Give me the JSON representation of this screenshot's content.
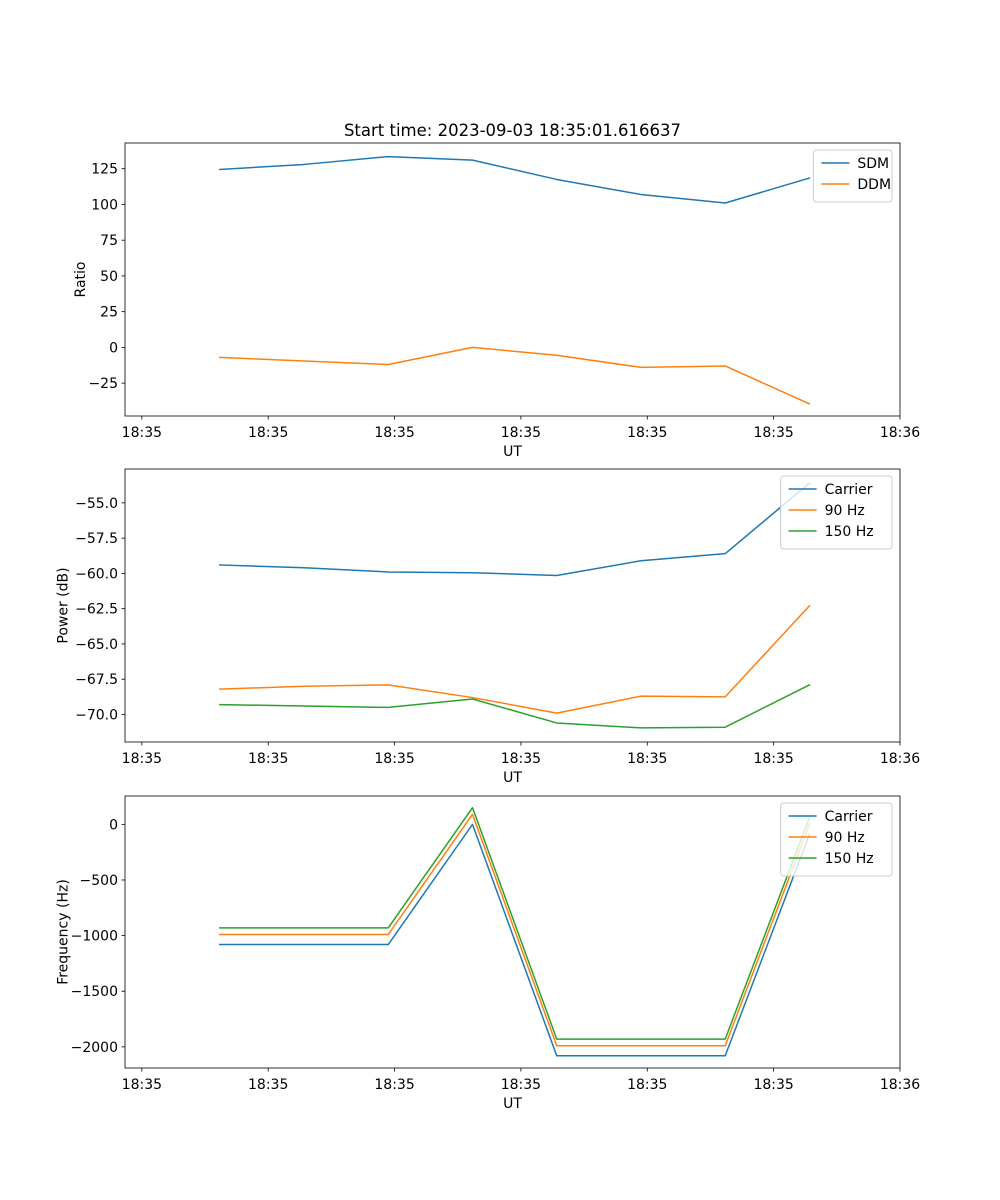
{
  "chart_data": [
    {
      "type": "line",
      "title": "Start time: 2023-09-03 18:35:01.616637",
      "xlabel": "UT",
      "ylabel": "Ratio",
      "xlim": [
        -1,
        17.4
      ],
      "x_tick_positions": [
        -0.6,
        2.4,
        5.4,
        8.4,
        11.4,
        14.4,
        17.4
      ],
      "x_tick_labels": [
        "18:35",
        "18:35",
        "18:35",
        "18:35",
        "18:35",
        "18:35",
        "18:36"
      ],
      "ylim": [
        -48,
        143
      ],
      "y_ticks": [
        -25,
        0,
        25,
        50,
        75,
        100,
        125
      ],
      "y_tick_labels": [
        "−25",
        "0",
        "25",
        "50",
        "75",
        "100",
        "125"
      ],
      "x": [
        1.25,
        3.25,
        5.25,
        7.25,
        9.25,
        11.25,
        13.25,
        15.25
      ],
      "series": [
        {
          "name": "SDM",
          "color": "#1f77b4",
          "values": [
            124.5,
            128,
            133.5,
            131,
            117.5,
            107,
            101,
            118.5
          ]
        },
        {
          "name": "DDM",
          "color": "#ff7f0e",
          "values": [
            -7,
            -9.5,
            -12,
            0,
            -5.5,
            -14,
            -13,
            -39.5
          ]
        }
      ],
      "legend": "top-right"
    },
    {
      "type": "line",
      "title": "",
      "xlabel": "UT",
      "ylabel": "Power (dB)",
      "xlim": [
        -1,
        17.4
      ],
      "x_tick_positions": [
        -0.6,
        2.4,
        5.4,
        8.4,
        11.4,
        14.4,
        17.4
      ],
      "x_tick_labels": [
        "18:35",
        "18:35",
        "18:35",
        "18:35",
        "18:35",
        "18:35",
        "18:36"
      ],
      "ylim": [
        -71.95,
        -52.6
      ],
      "y_ticks": [
        -70,
        -67.5,
        -65,
        -62.5,
        -60,
        -57.5,
        -55
      ],
      "y_tick_labels": [
        "−70.0",
        "−67.5",
        "−65.0",
        "−62.5",
        "−60.0",
        "−57.5",
        "−55.0"
      ],
      "x": [
        1.25,
        3.25,
        5.25,
        7.25,
        9.25,
        11.25,
        13.25,
        15.25
      ],
      "series": [
        {
          "name": "Carrier",
          "color": "#1f77b4",
          "values": [
            -59.4,
            -59.6,
            -59.9,
            -59.95,
            -60.15,
            -59.1,
            -58.6,
            -53.6
          ]
        },
        {
          "name": "90 Hz",
          "color": "#ff7f0e",
          "values": [
            -68.2,
            -68.0,
            -67.9,
            -68.8,
            -69.9,
            -68.7,
            -68.75,
            -62.3
          ]
        },
        {
          "name": "150 Hz",
          "color": "#2ca02c",
          "values": [
            -69.3,
            -69.4,
            -69.5,
            -68.9,
            -70.6,
            -70.95,
            -70.9,
            -67.9
          ]
        }
      ],
      "legend": "top-right"
    },
    {
      "type": "line",
      "title": "",
      "xlabel": "UT",
      "ylabel": "Frequency (Hz)",
      "xlim": [
        -1,
        17.4
      ],
      "x_tick_positions": [
        -0.6,
        2.4,
        5.4,
        8.4,
        11.4,
        14.4,
        17.4
      ],
      "x_tick_labels": [
        "18:35",
        "18:35",
        "18:35",
        "18:35",
        "18:35",
        "18:35",
        "18:36"
      ],
      "ylim": [
        -2190,
        255
      ],
      "y_ticks": [
        -2000,
        -1500,
        -1000,
        -500,
        0
      ],
      "y_tick_labels": [
        "−2000",
        "−1500",
        "−1000",
        "−500",
        "0"
      ],
      "x": [
        1.25,
        3.25,
        5.25,
        7.25,
        9.25,
        11.25,
        13.25,
        15.25
      ],
      "series": [
        {
          "name": "Carrier",
          "color": "#1f77b4",
          "values": [
            -1080,
            -1080,
            -1080,
            0,
            -2080,
            -2080,
            -2080,
            -90
          ]
        },
        {
          "name": "90 Hz",
          "color": "#ff7f0e",
          "values": [
            -990,
            -990,
            -990,
            90,
            -1990,
            -1990,
            -1990,
            0
          ]
        },
        {
          "name": "150 Hz",
          "color": "#2ca02c",
          "values": [
            -930,
            -930,
            -930,
            150,
            -1930,
            -1930,
            -1930,
            60
          ]
        }
      ],
      "legend": "top-right"
    }
  ]
}
